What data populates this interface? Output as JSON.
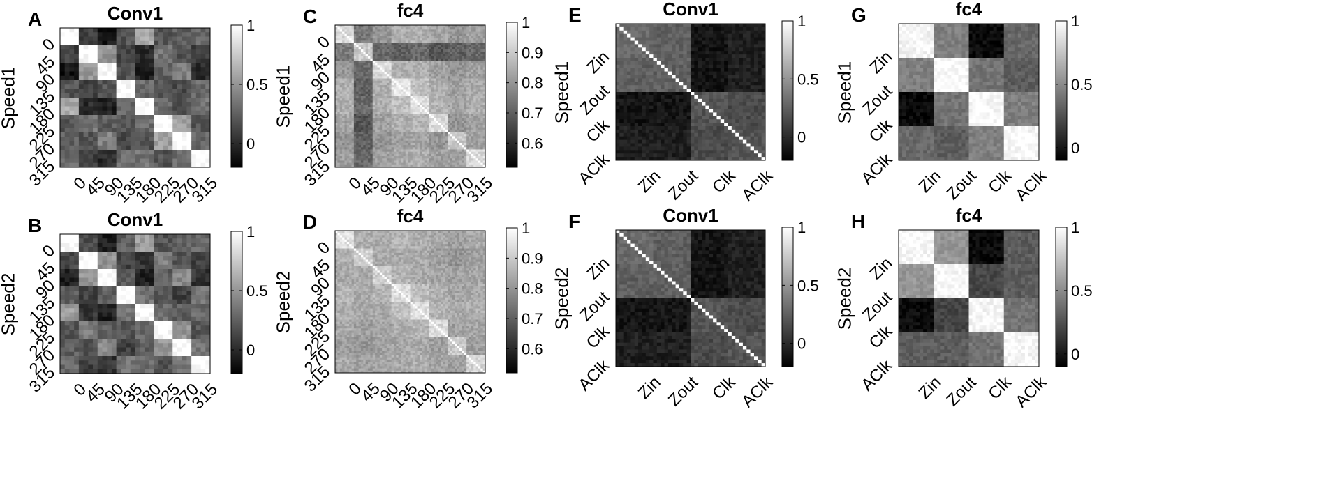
{
  "chart_data": [
    {
      "type": "heatmap",
      "panel": "A",
      "title": "Conv1",
      "row_label": "Speed1",
      "categories": [
        "0",
        "45",
        "90",
        "135",
        "180",
        "225",
        "270",
        "315"
      ],
      "cell_counts": [
        4,
        4,
        4,
        4,
        4,
        4,
        4,
        4
      ],
      "block_values": [
        [
          1.0,
          0.1,
          -0.1,
          0.2,
          0.6,
          0.2,
          0.25,
          0.3
        ],
        [
          0.1,
          1.0,
          0.5,
          0.1,
          0.0,
          0.35,
          0.2,
          0.1
        ],
        [
          -0.1,
          0.5,
          1.0,
          0.2,
          -0.05,
          0.25,
          0.4,
          0.0
        ],
        [
          0.2,
          0.1,
          0.2,
          1.0,
          0.3,
          0.2,
          0.15,
          0.3
        ],
        [
          0.6,
          0.0,
          -0.05,
          0.3,
          1.0,
          0.3,
          0.2,
          0.35
        ],
        [
          0.2,
          0.35,
          0.25,
          0.2,
          0.3,
          1.0,
          0.55,
          0.2
        ],
        [
          0.25,
          0.2,
          0.4,
          0.15,
          0.2,
          0.55,
          1.0,
          0.3
        ],
        [
          0.3,
          0.1,
          0.0,
          0.3,
          0.35,
          0.2,
          0.3,
          1.0
        ]
      ],
      "clim": [
        -0.2,
        1.0
      ],
      "colorbar_ticks": [
        "1",
        "0.5",
        "0"
      ]
    },
    {
      "type": "heatmap",
      "panel": "B",
      "title": "Conv1",
      "row_label": "Speed2",
      "categories": [
        "0",
        "45",
        "90",
        "135",
        "180",
        "225",
        "270",
        "315"
      ],
      "cell_counts": [
        4,
        4,
        4,
        4,
        4,
        4,
        4,
        4
      ],
      "block_values": [
        [
          1.0,
          0.15,
          -0.05,
          0.25,
          0.55,
          0.2,
          0.25,
          0.3
        ],
        [
          0.15,
          1.0,
          0.5,
          0.1,
          0.05,
          0.4,
          0.2,
          0.1
        ],
        [
          -0.05,
          0.5,
          1.0,
          0.25,
          -0.05,
          0.25,
          0.45,
          0.05
        ],
        [
          0.25,
          0.1,
          0.25,
          1.0,
          0.35,
          0.2,
          0.1,
          0.35
        ],
        [
          0.55,
          0.05,
          -0.05,
          0.35,
          1.0,
          0.3,
          0.25,
          0.3
        ],
        [
          0.2,
          0.4,
          0.25,
          0.2,
          0.3,
          1.0,
          0.5,
          0.2
        ],
        [
          0.25,
          0.2,
          0.45,
          0.1,
          0.25,
          0.5,
          1.0,
          0.35
        ],
        [
          0.3,
          0.1,
          0.05,
          0.35,
          0.3,
          0.2,
          0.35,
          1.0
        ]
      ],
      "clim": [
        -0.2,
        1.0
      ],
      "colorbar_ticks": [
        "1",
        "0.5",
        "0"
      ]
    },
    {
      "type": "heatmap",
      "panel": "C",
      "title": "fc4",
      "row_label": "Speed1",
      "categories": [
        "0",
        "45",
        "90",
        "135",
        "180",
        "225",
        "270",
        "315"
      ],
      "cell_counts": [
        8,
        8,
        8,
        8,
        8,
        8,
        8,
        8
      ],
      "block_values": [
        [
          0.93,
          0.75,
          0.8,
          0.85,
          0.85,
          0.83,
          0.8,
          0.82
        ],
        [
          0.75,
          0.9,
          0.72,
          0.7,
          0.72,
          0.68,
          0.7,
          0.72
        ],
        [
          0.8,
          0.72,
          0.93,
          0.85,
          0.85,
          0.82,
          0.8,
          0.82
        ],
        [
          0.85,
          0.7,
          0.85,
          0.95,
          0.88,
          0.85,
          0.82,
          0.84
        ],
        [
          0.85,
          0.72,
          0.85,
          0.88,
          0.94,
          0.86,
          0.83,
          0.85
        ],
        [
          0.83,
          0.68,
          0.82,
          0.85,
          0.86,
          0.93,
          0.8,
          0.82
        ],
        [
          0.8,
          0.7,
          0.8,
          0.82,
          0.83,
          0.8,
          0.9,
          0.82
        ],
        [
          0.82,
          0.72,
          0.82,
          0.84,
          0.85,
          0.82,
          0.82,
          0.93
        ]
      ],
      "clim": [
        0.52,
        1.0
      ],
      "colorbar_ticks": [
        "1",
        "0.9",
        "0.8",
        "0.7",
        "0.6"
      ]
    },
    {
      "type": "heatmap",
      "panel": "D",
      "title": "fc4",
      "row_label": "Speed2",
      "categories": [
        "0",
        "45",
        "90",
        "135",
        "180",
        "225",
        "270",
        "315"
      ],
      "cell_counts": [
        8,
        8,
        8,
        8,
        8,
        8,
        8,
        8
      ],
      "block_values": [
        [
          0.94,
          0.85,
          0.84,
          0.86,
          0.85,
          0.84,
          0.82,
          0.84
        ],
        [
          0.85,
          0.92,
          0.84,
          0.84,
          0.84,
          0.82,
          0.8,
          0.82
        ],
        [
          0.84,
          0.84,
          0.91,
          0.86,
          0.84,
          0.83,
          0.82,
          0.83
        ],
        [
          0.86,
          0.84,
          0.86,
          0.94,
          0.88,
          0.85,
          0.83,
          0.84
        ],
        [
          0.85,
          0.84,
          0.84,
          0.88,
          0.94,
          0.86,
          0.84,
          0.85
        ],
        [
          0.84,
          0.82,
          0.83,
          0.85,
          0.86,
          0.93,
          0.82,
          0.83
        ],
        [
          0.82,
          0.8,
          0.82,
          0.83,
          0.84,
          0.82,
          0.9,
          0.82
        ],
        [
          0.84,
          0.82,
          0.83,
          0.84,
          0.85,
          0.83,
          0.82,
          0.92
        ]
      ],
      "clim": [
        0.52,
        1.0
      ],
      "colorbar_ticks": [
        "1",
        "0.9",
        "0.8",
        "0.7",
        "0.6"
      ]
    },
    {
      "type": "heatmap",
      "panel": "E",
      "title": "Conv1",
      "row_label": "Speed1",
      "categories": [
        "Zin",
        "Zout",
        "Clk",
        "AClk"
      ],
      "cell_counts": [
        10,
        10,
        10,
        10
      ],
      "block_values": [
        [
          0.3,
          0.25,
          -0.1,
          -0.05
        ],
        [
          0.25,
          0.25,
          -0.1,
          -0.05
        ],
        [
          -0.1,
          -0.1,
          0.2,
          0.15
        ],
        [
          -0.05,
          -0.05,
          0.15,
          0.2
        ]
      ],
      "clim": [
        -0.2,
        1.0
      ],
      "colorbar_ticks": [
        "1",
        "0.5",
        "0"
      ]
    },
    {
      "type": "heatmap",
      "panel": "F",
      "title": "Conv1",
      "row_label": "Speed2",
      "categories": [
        "Zin",
        "Zout",
        "Clk",
        "AClk"
      ],
      "cell_counts": [
        10,
        10,
        10,
        10
      ],
      "block_values": [
        [
          0.3,
          0.25,
          -0.1,
          -0.05
        ],
        [
          0.25,
          0.25,
          -0.1,
          -0.05
        ],
        [
          -0.1,
          -0.1,
          0.2,
          0.15
        ],
        [
          -0.05,
          -0.05,
          0.15,
          0.2
        ]
      ],
      "clim": [
        -0.2,
        1.0
      ],
      "colorbar_ticks": [
        "1",
        "0.5",
        "0"
      ]
    },
    {
      "type": "heatmap",
      "panel": "G",
      "title": "fc4",
      "row_label": "Speed1",
      "categories": [
        "Zin",
        "Zout",
        "Clk",
        "AClk"
      ],
      "cell_counts": [
        10,
        10,
        10,
        10
      ],
      "block_values": [
        [
          0.95,
          0.45,
          -0.05,
          0.35
        ],
        [
          0.45,
          0.98,
          0.4,
          0.3
        ],
        [
          -0.05,
          0.4,
          0.97,
          0.45
        ],
        [
          0.35,
          0.3,
          0.45,
          0.96
        ]
      ],
      "clim": [
        -0.1,
        1.0
      ],
      "colorbar_ticks": [
        "1",
        "0.5",
        "0"
      ]
    },
    {
      "type": "heatmap",
      "panel": "H",
      "title": "fc4",
      "row_label": "Speed2",
      "categories": [
        "Zin",
        "Zout",
        "Clk",
        "AClk"
      ],
      "cell_counts": [
        10,
        10,
        10,
        10
      ],
      "block_values": [
        [
          0.96,
          0.55,
          -0.05,
          0.3
        ],
        [
          0.55,
          0.97,
          0.2,
          0.3
        ],
        [
          -0.05,
          0.2,
          0.96,
          0.4
        ],
        [
          0.3,
          0.3,
          0.4,
          0.96
        ]
      ],
      "clim": [
        -0.1,
        1.0
      ],
      "colorbar_ticks": [
        "1",
        "0.5",
        "0"
      ]
    }
  ]
}
